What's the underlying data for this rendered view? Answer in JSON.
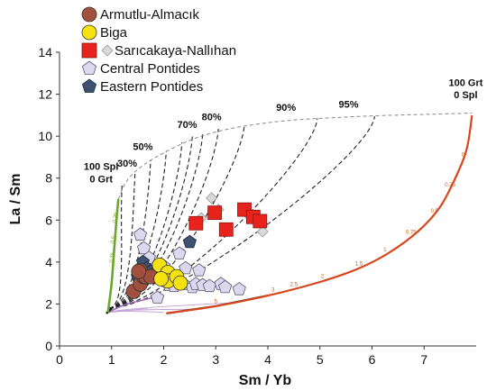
{
  "chart_data": {
    "type": "scatter",
    "xlabel": "Sm / Yb",
    "ylabel": "La / Sm",
    "xlim": [
      0,
      8
    ],
    "ylim": [
      0,
      14
    ],
    "xticks": [
      "0",
      "1",
      "2",
      "3",
      "4",
      "5",
      "6",
      "7"
    ],
    "yticks": [
      "0",
      "2",
      "4",
      "6",
      "8",
      "10",
      "12",
      "14"
    ],
    "grid": false,
    "legend_position": "top-left",
    "series": [
      {
        "name": "Armutlu-Almacık",
        "marker": "circle",
        "color": "#a0503c",
        "x": [
          1.42,
          1.55,
          1.62,
          1.55,
          1.65,
          1.75,
          1.52
        ],
        "y": [
          2.6,
          2.95,
          3.3,
          3.6,
          3.3,
          3.3,
          3.55
        ]
      },
      {
        "name": "Biga",
        "marker": "circle",
        "color": "#f6e20e",
        "x": [
          1.92,
          2.08,
          2.08,
          2.25,
          2.32,
          1.95
        ],
        "y": [
          3.85,
          3.5,
          3.1,
          3.3,
          3.0,
          3.2
        ]
      },
      {
        "name": "Sarıcakaya-Nallıhan",
        "marker": "square",
        "color": "#e8231c",
        "x": [
          2.62,
          2.98,
          3.2,
          3.55,
          3.72,
          3.85
        ],
        "y": [
          5.85,
          6.35,
          5.55,
          6.5,
          6.15,
          5.95
        ]
      },
      {
        "name": "Sarıcakaya-Nallıhan (open)",
        "marker": "diamond",
        "color": "#d9d9d9",
        "x": [
          2.72,
          2.92,
          3.05,
          3.62,
          3.9
        ],
        "y": [
          6.1,
          7.05,
          6.5,
          6.25,
          5.45
        ]
      },
      {
        "name": "Central Pontides",
        "marker": "pentagon",
        "color": "#dcd8ee",
        "x": [
          1.55,
          1.62,
          1.72,
          1.9,
          2.0,
          2.1,
          2.2,
          2.38,
          2.42,
          2.55,
          2.62,
          2.68,
          2.75,
          2.88,
          3.1,
          3.18,
          3.45,
          1.88,
          2.3
        ],
        "y": [
          5.3,
          4.65,
          4.2,
          3.5,
          3.8,
          2.9,
          2.85,
          2.95,
          3.7,
          2.8,
          2.95,
          3.6,
          2.9,
          2.85,
          2.95,
          2.8,
          2.7,
          2.3,
          4.4
        ]
      },
      {
        "name": "Eastern Pontides",
        "marker": "pentagon",
        "color": "#3d5170",
        "x": [
          1.55,
          1.6,
          1.68,
          1.75,
          1.8,
          1.85,
          1.5,
          2.5
        ],
        "y": [
          3.5,
          4.0,
          3.7,
          3.55,
          3.4,
          3.5,
          3.3,
          4.95
        ]
      }
    ],
    "melting_curves": [
      {
        "label": "100 Spl 0 Grt",
        "color": "#6aa82a",
        "x": [
          0.93,
          1.0,
          1.05,
          1.1,
          1.13
        ],
        "y": [
          1.6,
          3.0,
          4.6,
          6.2,
          7.0
        ]
      },
      {
        "label": "100 Grt 0 Spl",
        "color": "#d9451b",
        "x": [
          2.05,
          3.0,
          4.0,
          5.0,
          5.7,
          6.3,
          6.9,
          7.3,
          7.6,
          7.82,
          7.92
        ],
        "y": [
          1.55,
          1.9,
          2.4,
          3.05,
          3.65,
          4.4,
          5.5,
          6.6,
          8.0,
          9.4,
          11.0
        ]
      }
    ],
    "mixing_labels": [
      "30%",
      "50%",
      "70%",
      "80%",
      "90%",
      "95%"
    ],
    "mixing_label_x": [
      1.3,
      1.6,
      2.45,
      2.92,
      4.35,
      5.55
    ],
    "mixing_label_y": [
      8.55,
      9.35,
      10.4,
      10.75,
      11.2,
      11.35
    ],
    "mixing_top_x": [
      1.2,
      1.45,
      1.75,
      2.05,
      2.35,
      2.55,
      2.75,
      3.05,
      3.55,
      4.95,
      6.05
    ],
    "mixing_top_y": [
      7.65,
      8.25,
      8.85,
      9.3,
      9.7,
      10.0,
      10.15,
      10.35,
      10.55,
      10.85,
      10.95
    ],
    "green_annotations": [
      "0.75",
      "0.5",
      "0.25"
    ],
    "red_annotations": [
      "5",
      "3",
      "2.5",
      "2",
      "1.5",
      "1",
      "0.75",
      "0.5",
      "0.25",
      "0"
    ]
  }
}
